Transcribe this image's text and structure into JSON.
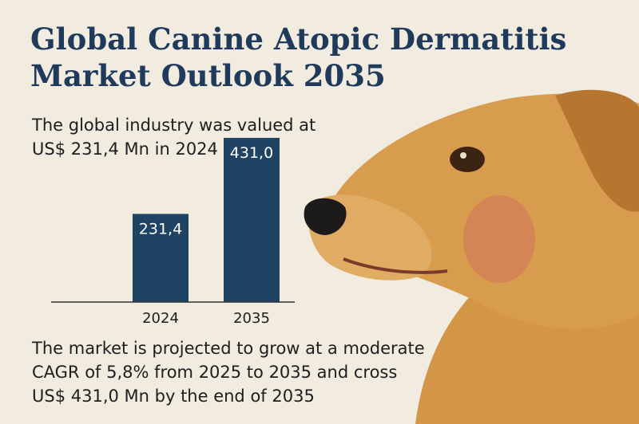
{
  "title_lines": [
    "Global Canine Atopic Dermatitis",
    "Market Outlook 2035"
  ],
  "intro_lines": [
    "The global industry was valued at",
    "US$ 231,4 Mn in 2024"
  ],
  "outlook_lines": [
    "The market is projected to grow at a moderate",
    "CAGR of 5,8% from 2025 to 2035 and cross",
    "US$ 431,0 Mn by the end of 2035"
  ],
  "chart_data": {
    "type": "bar",
    "categories": [
      "2024",
      "2035"
    ],
    "values": [
      231.4,
      431.0
    ],
    "value_labels": [
      "231,4",
      "431,0"
    ],
    "ylim": [
      0,
      500
    ],
    "grid": false,
    "bar_color": "#1f4363",
    "title": "",
    "xlabel": "",
    "ylabel": ""
  },
  "colors": {
    "background": "#f1ebe0",
    "title": "#1f3a5a",
    "bar": "#1f4363",
    "bar_label": "#ffffff",
    "dog_fur": "#d59a4c"
  },
  "image": "dog-illustration"
}
